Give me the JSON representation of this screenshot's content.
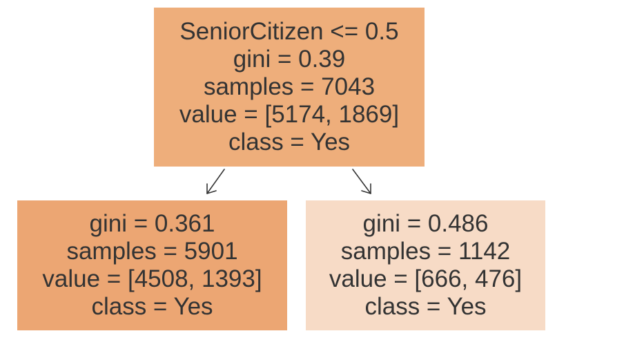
{
  "tree": {
    "root": {
      "fill": "#eeae7b",
      "lines": [
        "SeniorCitizen <= 0.5",
        "gini = 0.39",
        "samples = 7043",
        "value = [5174, 1869]",
        "class = Yes"
      ]
    },
    "left": {
      "fill": "#eca673",
      "lines": [
        "gini = 0.361",
        "samples = 5901",
        "value = [4508, 1393]",
        "class = Yes"
      ]
    },
    "right": {
      "fill": "#f7dbc6",
      "lines": [
        "gini = 0.486",
        "samples = 1142",
        "value = [666, 476]",
        "class = Yes"
      ]
    }
  }
}
